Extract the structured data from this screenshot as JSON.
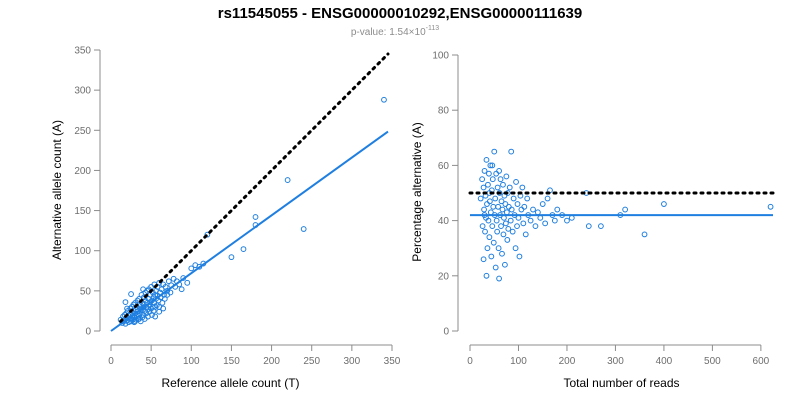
{
  "figure": {
    "title": "rs11545055 - ENSG00000010292,ENSG00000111639",
    "pvalue_prefix": "p-value: 1.54×10",
    "pvalue_exponent": "-113",
    "colors": {
      "points": "#1f7fe0",
      "reference": "#000000",
      "axis": "#8c8c8c"
    }
  },
  "chart_data": [
    {
      "type": "scatter",
      "title": "",
      "xlabel": "Reference allele count (T)",
      "ylabel": "Alternative allele count (A)",
      "xlim": [
        0,
        350
      ],
      "ylim": [
        0,
        350
      ],
      "xticks": [
        0,
        50,
        100,
        150,
        200,
        250,
        300,
        350
      ],
      "yticks": [
        0,
        50,
        100,
        150,
        200,
        250,
        300,
        350
      ],
      "grid": false,
      "reference_line": {
        "label": "y = x",
        "from": [
          12,
          12
        ],
        "to": [
          345,
          345
        ],
        "style": "dotted"
      },
      "fit_line": {
        "slope": 0.72,
        "intercept": 0,
        "from": 0,
        "to": 345
      },
      "points": [
        [
          12,
          14
        ],
        [
          14,
          10
        ],
        [
          15,
          18
        ],
        [
          16,
          12
        ],
        [
          17,
          20
        ],
        [
          18,
          9
        ],
        [
          18,
          15
        ],
        [
          19,
          22
        ],
        [
          20,
          13
        ],
        [
          20,
          17
        ],
        [
          21,
          25
        ],
        [
          22,
          11
        ],
        [
          22,
          19
        ],
        [
          23,
          15
        ],
        [
          24,
          28
        ],
        [
          24,
          21
        ],
        [
          25,
          12
        ],
        [
          25,
          16
        ],
        [
          26,
          30
        ],
        [
          26,
          23
        ],
        [
          27,
          14
        ],
        [
          27,
          19
        ],
        [
          28,
          33
        ],
        [
          28,
          25
        ],
        [
          29,
          17
        ],
        [
          29,
          11
        ],
        [
          30,
          22
        ],
        [
          30,
          35
        ],
        [
          31,
          14
        ],
        [
          31,
          27
        ],
        [
          32,
          18
        ],
        [
          32,
          30
        ],
        [
          33,
          21
        ],
        [
          33,
          38
        ],
        [
          34,
          15
        ],
        [
          34,
          25
        ],
        [
          35,
          40
        ],
        [
          35,
          19
        ],
        [
          36,
          28
        ],
        [
          36,
          22
        ],
        [
          37,
          12
        ],
        [
          37,
          32
        ],
        [
          38,
          45
        ],
        [
          38,
          26
        ],
        [
          39,
          17
        ],
        [
          39,
          35
        ],
        [
          40,
          29
        ],
        [
          40,
          20
        ],
        [
          41,
          42
        ],
        [
          41,
          33
        ],
        [
          42,
          25
        ],
        [
          42,
          15
        ],
        [
          43,
          38
        ],
        [
          43,
          48
        ],
        [
          44,
          30
        ],
        [
          44,
          22
        ],
        [
          45,
          50
        ],
        [
          45,
          35
        ],
        [
          46,
          27
        ],
        [
          46,
          18
        ],
        [
          47,
          40
        ],
        [
          47,
          52
        ],
        [
          48,
          32
        ],
        [
          48,
          24
        ],
        [
          49,
          45
        ],
        [
          49,
          36
        ],
        [
          50,
          55
        ],
        [
          50,
          28
        ],
        [
          51,
          38
        ],
        [
          51,
          20
        ],
        [
          52,
          48
        ],
        [
          52,
          30
        ],
        [
          53,
          42
        ],
        [
          53,
          25
        ],
        [
          54,
          58
        ],
        [
          54,
          35
        ],
        [
          55,
          45
        ],
        [
          55,
          18
        ],
        [
          56,
          50
        ],
        [
          56,
          40
        ],
        [
          57,
          32
        ],
        [
          58,
          55
        ],
        [
          58,
          44
        ],
        [
          59,
          38
        ],
        [
          60,
          60
        ],
        [
          60,
          30
        ],
        [
          61,
          48
        ],
        [
          62,
          42
        ],
        [
          63,
          52
        ],
        [
          64,
          35
        ],
        [
          65,
          58
        ],
        [
          66,
          45
        ],
        [
          67,
          40
        ],
        [
          68,
          55
        ],
        [
          70,
          50
        ],
        [
          72,
          62
        ],
        [
          74,
          48
        ],
        [
          75,
          57
        ],
        [
          78,
          65
        ],
        [
          80,
          55
        ],
        [
          82,
          62
        ],
        [
          85,
          58
        ],
        [
          88,
          52
        ],
        [
          90,
          66
        ],
        [
          95,
          60
        ],
        [
          25,
          46
        ],
        [
          30,
          12
        ],
        [
          18,
          36
        ],
        [
          20,
          28
        ],
        [
          35,
          15
        ],
        [
          40,
          52
        ],
        [
          60,
          24
        ],
        [
          55,
          30
        ],
        [
          65,
          28
        ],
        [
          70,
          45
        ],
        [
          100,
          78
        ],
        [
          105,
          82
        ],
        [
          110,
          80
        ],
        [
          115,
          84
        ],
        [
          120,
          120
        ],
        [
          150,
          92
        ],
        [
          165,
          102
        ],
        [
          180,
          132
        ],
        [
          180,
          142
        ],
        [
          220,
          188
        ],
        [
          240,
          127
        ],
        [
          340,
          288
        ]
      ]
    },
    {
      "type": "scatter",
      "title": "",
      "xlabel": "Total number of reads",
      "ylabel": "Percentage alternative (A)",
      "xlim": [
        0,
        625
      ],
      "ylim": [
        0,
        100
      ],
      "xticks": [
        0,
        100,
        200,
        300,
        400,
        500,
        600
      ],
      "yticks": [
        0,
        20,
        40,
        60,
        80,
        100
      ],
      "grid": false,
      "reference_line": {
        "label": "50%",
        "y": 50,
        "from": 0,
        "to": 625,
        "style": "dotted"
      },
      "fit_line": {
        "y": 42,
        "from": 0,
        "to": 625
      },
      "points": [
        [
          22,
          48
        ],
        [
          25,
          55
        ],
        [
          26,
          38
        ],
        [
          28,
          52
        ],
        [
          29,
          44
        ],
        [
          30,
          58
        ],
        [
          31,
          36
        ],
        [
          32,
          49
        ],
        [
          33,
          41
        ],
        [
          34,
          62
        ],
        [
          35,
          46
        ],
        [
          36,
          30
        ],
        [
          37,
          53
        ],
        [
          38,
          40
        ],
        [
          39,
          57
        ],
        [
          40,
          34
        ],
        [
          41,
          47
        ],
        [
          42,
          60
        ],
        [
          43,
          43
        ],
        [
          44,
          27
        ],
        [
          45,
          51
        ],
        [
          46,
          38
        ],
        [
          47,
          55
        ],
        [
          48,
          45
        ],
        [
          49,
          32
        ],
        [
          50,
          65
        ],
        [
          51,
          42
        ],
        [
          52,
          48
        ],
        [
          53,
          23
        ],
        [
          54,
          57
        ],
        [
          55,
          40
        ],
        [
          56,
          36
        ],
        [
          57,
          52
        ],
        [
          58,
          45
        ],
        [
          59,
          30
        ],
        [
          60,
          19
        ],
        [
          61,
          50
        ],
        [
          62,
          42
        ],
        [
          63,
          55
        ],
        [
          64,
          38
        ],
        [
          65,
          47
        ],
        [
          66,
          28
        ],
        [
          67,
          44
        ],
        [
          68,
          53
        ],
        [
          69,
          35
        ],
        [
          70,
          41
        ],
        [
          71,
          49
        ],
        [
          72,
          24
        ],
        [
          73,
          46
        ],
        [
          74,
          39
        ],
        [
          75,
          56
        ],
        [
          76,
          43
        ],
        [
          77,
          33
        ],
        [
          78,
          50
        ],
        [
          79,
          37
        ],
        [
          80,
          45
        ],
        [
          82,
          52
        ],
        [
          84,
          40
        ],
        [
          85,
          65
        ],
        [
          86,
          44
        ],
        [
          88,
          36
        ],
        [
          90,
          48
        ],
        [
          92,
          42
        ],
        [
          94,
          30
        ],
        [
          95,
          54
        ],
        [
          97,
          38
        ],
        [
          98,
          46
        ],
        [
          100,
          41
        ],
        [
          102,
          27
        ],
        [
          104,
          49
        ],
        [
          106,
          44
        ],
        [
          108,
          52
        ],
        [
          110,
          39
        ],
        [
          112,
          45
        ],
        [
          115,
          35
        ],
        [
          118,
          48
        ],
        [
          120,
          42
        ],
        [
          125,
          40
        ],
        [
          130,
          44
        ],
        [
          135,
          38
        ],
        [
          140,
          43
        ],
        [
          145,
          41
        ],
        [
          150,
          46
        ],
        [
          155,
          39
        ],
        [
          160,
          48
        ],
        [
          165,
          51
        ],
        [
          170,
          42
        ],
        [
          175,
          40
        ],
        [
          180,
          44
        ],
        [
          190,
          42
        ],
        [
          200,
          40
        ],
        [
          210,
          41
        ],
        [
          240,
          50
        ],
        [
          245,
          38
        ],
        [
          270,
          38
        ],
        [
          310,
          42
        ],
        [
          320,
          44
        ],
        [
          360,
          35
        ],
        [
          400,
          46
        ],
        [
          620,
          45
        ],
        [
          28,
          26
        ],
        [
          34,
          20
        ],
        [
          46,
          60
        ],
        [
          60,
          58
        ],
        [
          30,
          42
        ],
        [
          40,
          50
        ]
      ]
    }
  ]
}
